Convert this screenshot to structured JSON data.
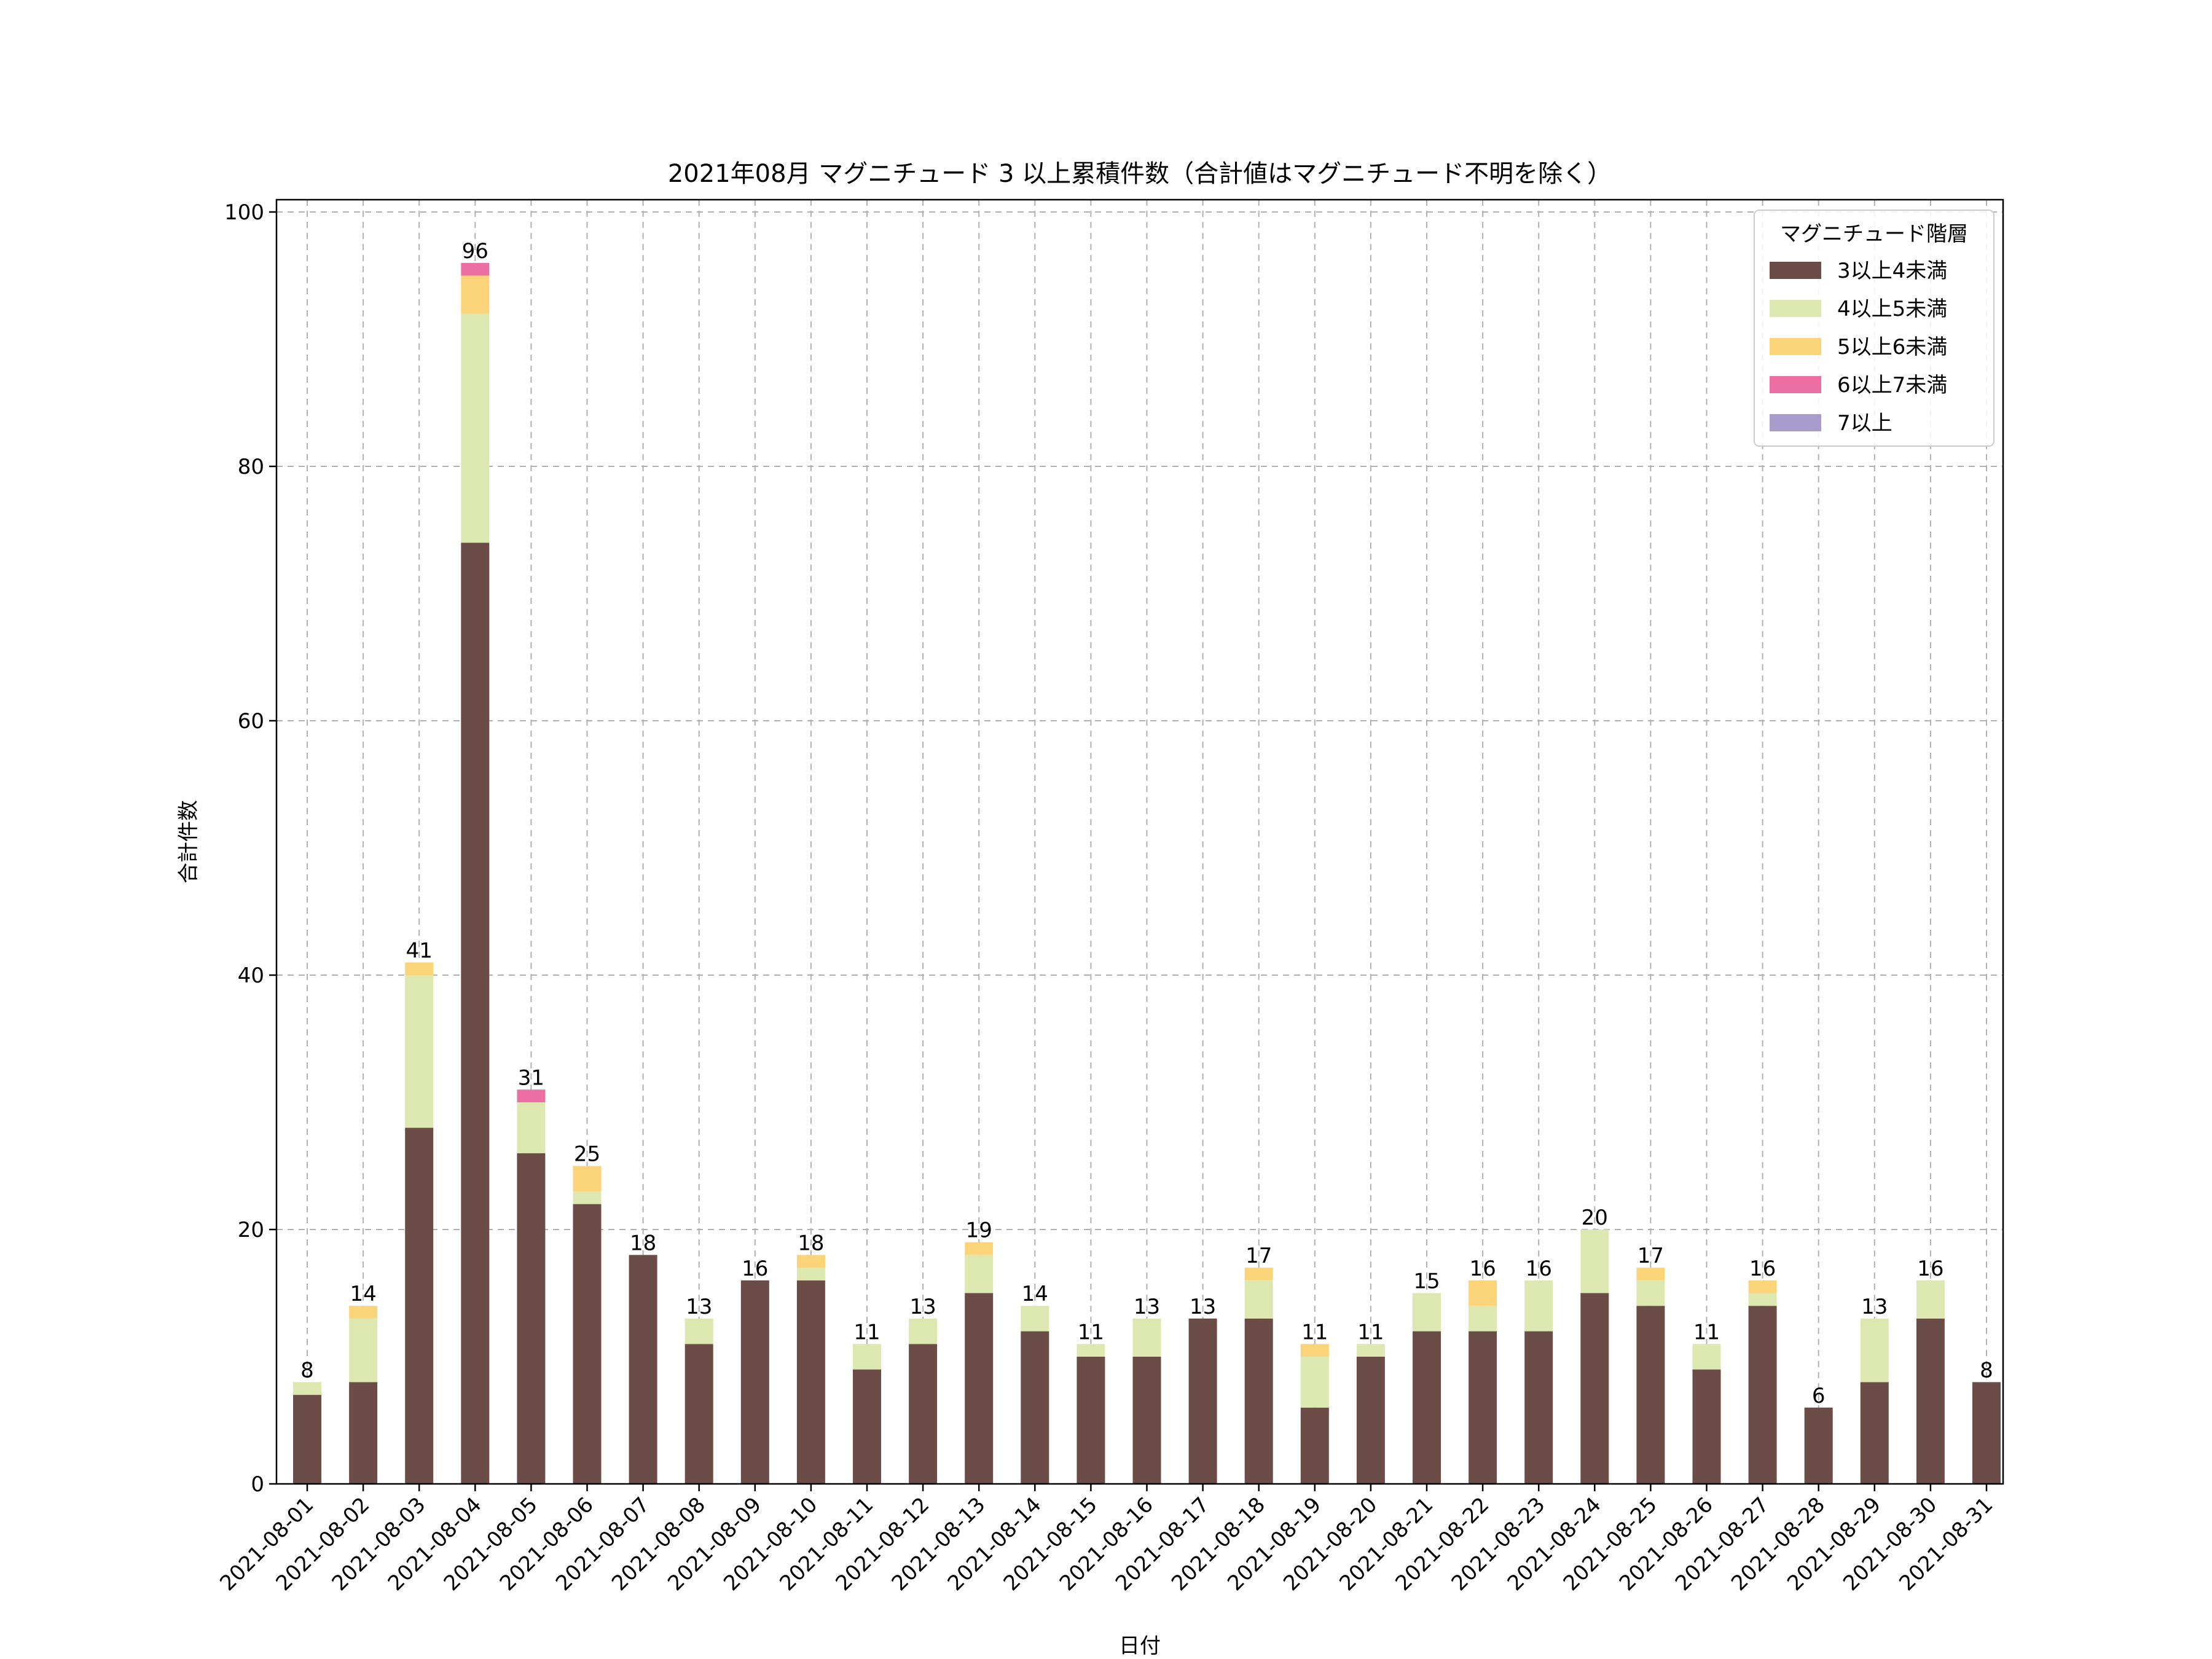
{
  "chart_data": {
    "type": "bar",
    "stacked": true,
    "title": "2021年08月 マグニチュード 3 以上累積件数（合計値はマグニチュード不明を除く）",
    "xlabel": "日付",
    "ylabel": "合計件数",
    "ylim": [
      0,
      100
    ],
    "yticks": [
      0,
      20,
      40,
      60,
      80,
      100
    ],
    "grid": true,
    "legend_title": "マグニチュード階層",
    "legend_position": "top-right",
    "categories": [
      "2021-08-01",
      "2021-08-02",
      "2021-08-03",
      "2021-08-04",
      "2021-08-05",
      "2021-08-06",
      "2021-08-07",
      "2021-08-08",
      "2021-08-09",
      "2021-08-10",
      "2021-08-11",
      "2021-08-12",
      "2021-08-13",
      "2021-08-14",
      "2021-08-15",
      "2021-08-16",
      "2021-08-17",
      "2021-08-18",
      "2021-08-19",
      "2021-08-20",
      "2021-08-21",
      "2021-08-22",
      "2021-08-23",
      "2021-08-24",
      "2021-08-25",
      "2021-08-26",
      "2021-08-27",
      "2021-08-28",
      "2021-08-29",
      "2021-08-30",
      "2021-08-31"
    ],
    "series": [
      {
        "name": "3以上4未満",
        "color": "#6b4c46",
        "values": [
          7,
          8,
          28,
          74,
          26,
          22,
          18,
          11,
          16,
          16,
          9,
          11,
          15,
          12,
          10,
          10,
          13,
          13,
          6,
          10,
          12,
          12,
          12,
          15,
          14,
          9,
          14,
          6,
          8,
          13,
          8
        ]
      },
      {
        "name": "4以上5未満",
        "color": "#dde8b0",
        "values": [
          1,
          5,
          12,
          18,
          4,
          1,
          0,
          2,
          0,
          1,
          2,
          2,
          3,
          2,
          1,
          3,
          0,
          3,
          4,
          1,
          3,
          2,
          4,
          5,
          2,
          2,
          1,
          0,
          5,
          3,
          0
        ]
      },
      {
        "name": "5以上6未満",
        "color": "#fbd47a",
        "values": [
          0,
          1,
          1,
          3,
          0,
          2,
          0,
          0,
          0,
          1,
          0,
          0,
          1,
          0,
          0,
          0,
          0,
          1,
          1,
          0,
          0,
          2,
          0,
          0,
          1,
          0,
          1,
          0,
          0,
          0,
          0
        ]
      },
      {
        "name": "6以上7未満",
        "color": "#ec6fa3",
        "values": [
          0,
          0,
          0,
          1,
          1,
          0,
          0,
          0,
          0,
          0,
          0,
          0,
          0,
          0,
          0,
          0,
          0,
          0,
          0,
          0,
          0,
          0,
          0,
          0,
          0,
          0,
          0,
          0,
          0,
          0,
          0
        ]
      },
      {
        "name": "7以上",
        "color": "#a99ccc",
        "values": [
          0,
          0,
          0,
          0,
          0,
          0,
          0,
          0,
          0,
          0,
          0,
          0,
          0,
          0,
          0,
          0,
          0,
          0,
          0,
          0,
          0,
          0,
          0,
          0,
          0,
          0,
          0,
          0,
          0,
          0,
          0
        ]
      }
    ],
    "totals": [
      8,
      14,
      41,
      96,
      31,
      25,
      18,
      13,
      16,
      18,
      11,
      13,
      19,
      14,
      11,
      13,
      13,
      17,
      11,
      11,
      15,
      16,
      16,
      20,
      17,
      11,
      16,
      6,
      13,
      16,
      8
    ]
  }
}
